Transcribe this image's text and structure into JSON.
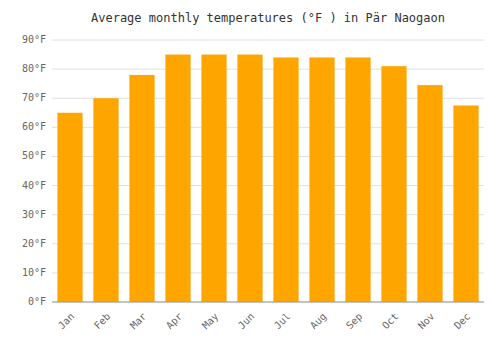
{
  "chart_data": {
    "type": "bar",
    "title": "Average monthly temperatures (°F ) in Pär Naogaon",
    "categories": [
      "Jan",
      "Feb",
      "Mar",
      "Apr",
      "May",
      "Jun",
      "Jul",
      "Aug",
      "Sep",
      "Oct",
      "Nov",
      "Dec"
    ],
    "values": [
      65,
      70,
      78,
      85,
      85,
      85,
      84,
      84,
      84,
      81,
      74.5,
      67.5
    ],
    "color": "#FFA500",
    "ylim": [
      0,
      90
    ],
    "yticks": [
      {
        "value": 0,
        "label": "0°F"
      },
      {
        "value": 10,
        "label": "10°F"
      },
      {
        "value": 20,
        "label": "20°F"
      },
      {
        "value": 30,
        "label": "30°F"
      },
      {
        "value": 40,
        "label": "40°F"
      },
      {
        "value": 50,
        "label": "50°F"
      },
      {
        "value": 60,
        "label": "60°F"
      },
      {
        "value": 70,
        "label": "70°F"
      },
      {
        "value": 80,
        "label": "80°F"
      },
      {
        "value": 90,
        "label": "90°F"
      }
    ],
    "grid": true
  }
}
